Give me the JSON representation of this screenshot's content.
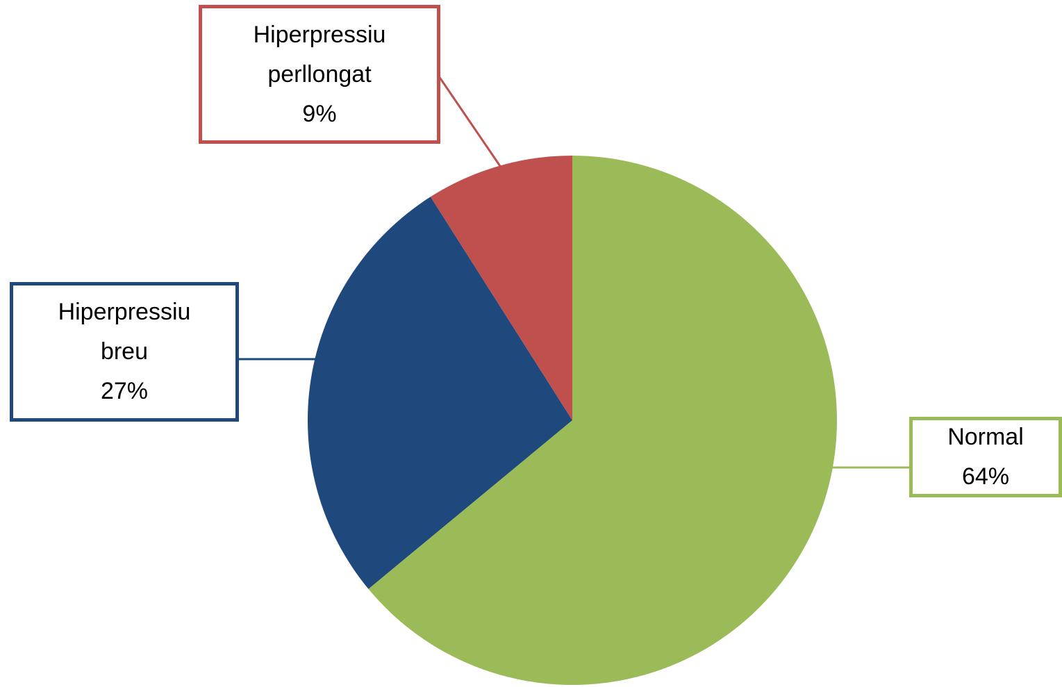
{
  "chart_data": {
    "type": "pie",
    "categories": [
      "Normal",
      "Hiperpressiu breu",
      "Hiperpressiu perllongat"
    ],
    "values": [
      64,
      27,
      9
    ],
    "value_labels": [
      "64%",
      "27%",
      "9%"
    ],
    "colors": [
      "#9bbb59",
      "#1f497d",
      "#c0504d"
    ]
  }
}
